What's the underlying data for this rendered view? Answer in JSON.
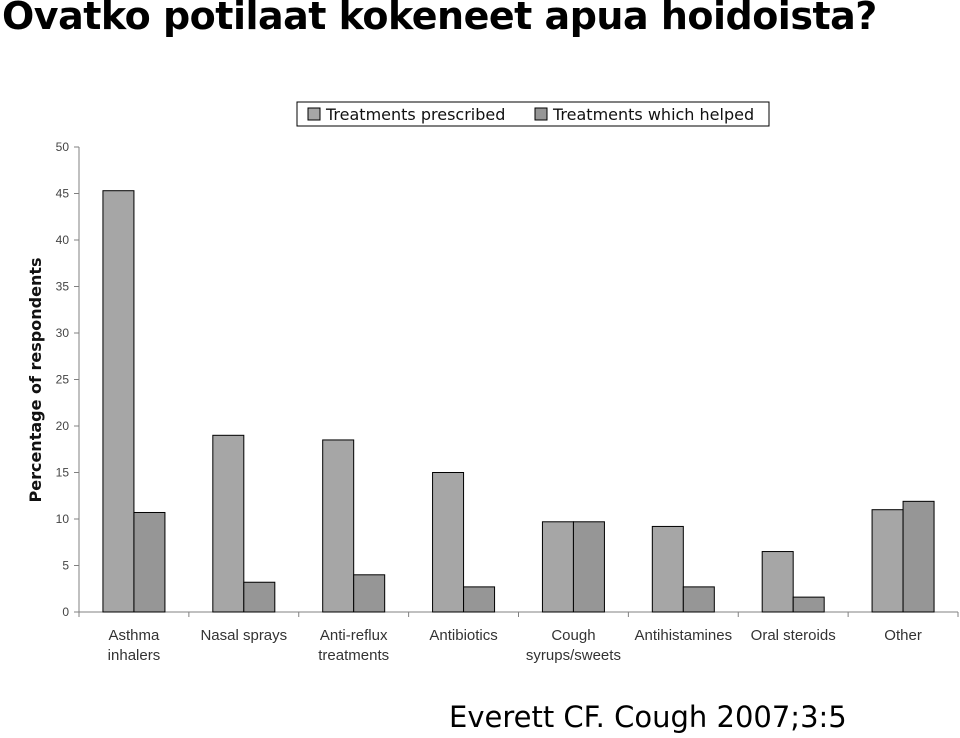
{
  "slide": {
    "title": "Ovatko potilaat kokeneet apua hoidoista?",
    "citation": "Everett CF. Cough 2007;3:5"
  },
  "colors": {
    "prescribed": "#a6a6a6",
    "helped": "#969696",
    "axis": "#808080",
    "bar_stroke": "#000000"
  },
  "chart_data": {
    "type": "bar",
    "title": "",
    "xlabel": "",
    "ylabel": "Percentage of respondents",
    "ylim": [
      0,
      50
    ],
    "yticks": [
      0,
      5,
      10,
      15,
      20,
      25,
      30,
      35,
      40,
      45,
      50
    ],
    "grid": false,
    "legend_position": "top",
    "categories": [
      [
        "Asthma",
        "inhalers"
      ],
      [
        "Nasal sprays"
      ],
      [
        "Anti-reflux",
        "treatments"
      ],
      [
        "Antibiotics"
      ],
      [
        "Cough",
        "syrups/sweets"
      ],
      [
        "Antihistamines"
      ],
      [
        "Oral steroids"
      ],
      [
        "Other"
      ]
    ],
    "series": [
      {
        "name": "Treatments prescribed",
        "values": [
          45.3,
          19.0,
          18.5,
          15.0,
          9.7,
          9.2,
          6.5,
          11.0
        ]
      },
      {
        "name": "Treatments which helped",
        "values": [
          10.7,
          3.2,
          4.0,
          2.7,
          9.7,
          2.7,
          1.6,
          11.9
        ]
      }
    ]
  }
}
